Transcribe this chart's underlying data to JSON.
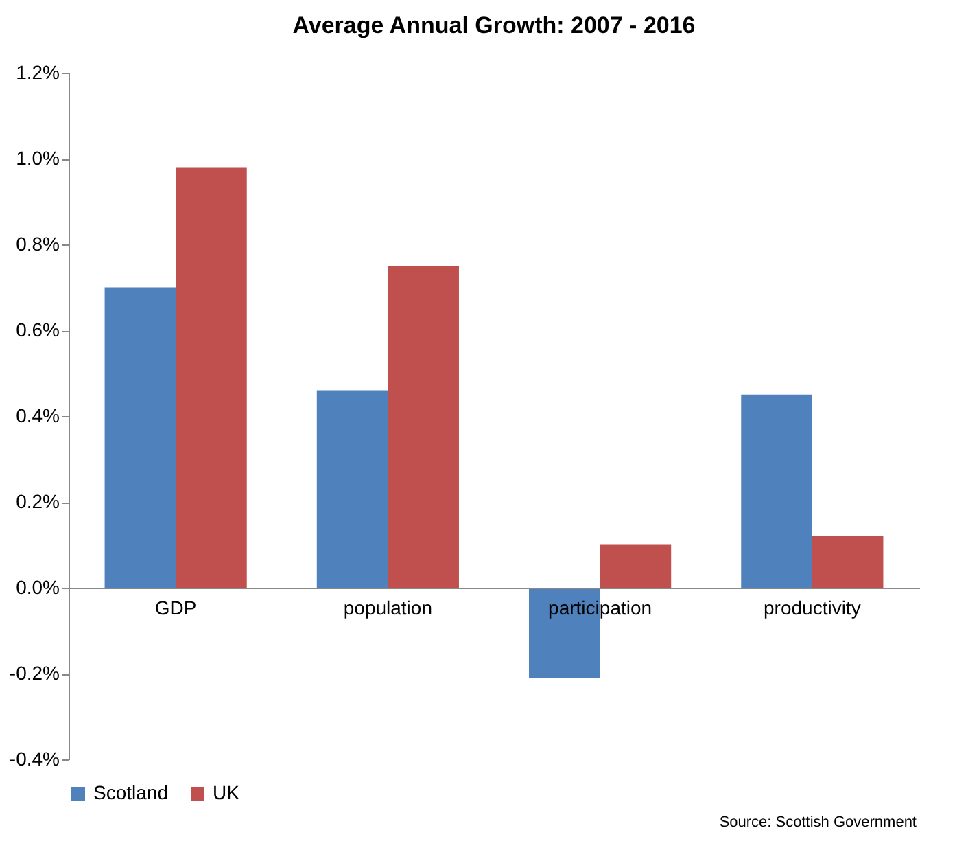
{
  "chart_data": {
    "type": "bar",
    "title": "Average Annual Growth: 2007 - 2016",
    "categories": [
      "GDP",
      "population",
      "participation",
      "productivity"
    ],
    "series": [
      {
        "name": "Scotland",
        "color": "#4f81bd",
        "values": [
          0.7,
          0.46,
          -0.21,
          0.45
        ]
      },
      {
        "name": "UK",
        "color": "#c0504d",
        "values": [
          0.98,
          0.75,
          0.1,
          0.12
        ]
      }
    ],
    "ylim": [
      -0.4,
      1.2
    ],
    "yticks": [
      {
        "value": -0.4,
        "label": "-0.4%"
      },
      {
        "value": -0.2,
        "label": "-0.2%"
      },
      {
        "value": 0,
        "label": "0.0%"
      },
      {
        "value": 0.2,
        "label": "0.2%"
      },
      {
        "value": 0.4,
        "label": "0.4%"
      },
      {
        "value": 0.6,
        "label": "0.6%"
      },
      {
        "value": 0.8,
        "label": "0.8%"
      },
      {
        "value": 1.0,
        "label": "1.0%"
      },
      {
        "value": 1.2,
        "label": "1.2%"
      }
    ],
    "legend": "bottom",
    "annotations": [
      "Source: Scottish Government"
    ]
  }
}
